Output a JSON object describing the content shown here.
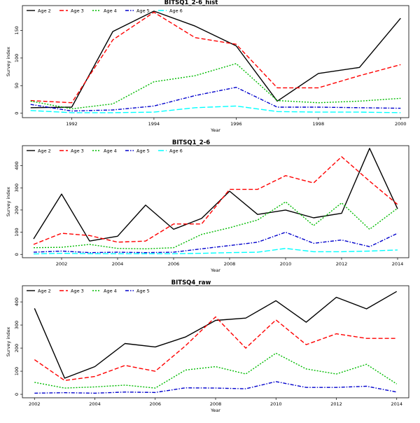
{
  "chart_data": [
    {
      "type": "line",
      "title": "BITSQ1_2-6_hist",
      "xlabel": "Year",
      "ylabel": "Survey index",
      "xlim": [
        1990.8,
        2000.2
      ],
      "ylim": [
        -8,
        195
      ],
      "xticks": [
        1992,
        1994,
        1996,
        1998,
        2000
      ],
      "yticks": [
        0,
        50,
        100,
        150
      ],
      "legend_position": "top-left",
      "x": [
        1991,
        1992,
        1993,
        1994,
        1995,
        1996,
        1997,
        1998,
        1999,
        2000
      ],
      "series": [
        {
          "name": "Age 2",
          "color": "#000000",
          "dash": "solid",
          "values": [
            10,
            11,
            148,
            185,
            158,
            122,
            22,
            72,
            83,
            172
          ]
        },
        {
          "name": "Age 3",
          "color": "#ff0000",
          "dash": "dash",
          "values": [
            23,
            19,
            133,
            183,
            137,
            125,
            46,
            46,
            68,
            88
          ]
        },
        {
          "name": "Age 4",
          "color": "#00bb00",
          "dash": "dot",
          "values": [
            22,
            8,
            17,
            57,
            68,
            90,
            23,
            19,
            22,
            27
          ]
        },
        {
          "name": "Age 5",
          "color": "#0000cc",
          "dash": "dashdot",
          "values": [
            16,
            4,
            6,
            13,
            32,
            47,
            11,
            11,
            10,
            9
          ]
        },
        {
          "name": "Age 6",
          "color": "#00ffff",
          "dash": "longdash",
          "values": [
            5,
            1,
            1,
            2,
            10,
            13,
            3,
            2,
            2,
            1
          ]
        }
      ]
    },
    {
      "type": "line",
      "title": "BITSQ1_2-6",
      "xlabel": "Year",
      "ylabel": "Survey index",
      "xlim": [
        2000.6,
        2014.4
      ],
      "ylim": [
        -15,
        490
      ],
      "xticks": [
        2002,
        2004,
        2006,
        2008,
        2010,
        2012,
        2014
      ],
      "yticks": [
        0,
        100,
        200,
        300,
        400
      ],
      "legend_position": "top-left",
      "x": [
        2001,
        2002,
        2003,
        2004,
        2005,
        2006,
        2007,
        2008,
        2009,
        2010,
        2011,
        2012,
        2013,
        2014
      ],
      "series": [
        {
          "name": "Age 2",
          "color": "#000000",
          "dash": "solid",
          "values": [
            70,
            272,
            60,
            82,
            222,
            113,
            162,
            285,
            180,
            200,
            165,
            185,
            478,
            205
          ]
        },
        {
          "name": "Age 3",
          "color": "#ff0000",
          "dash": "dash",
          "values": [
            45,
            95,
            85,
            55,
            60,
            137,
            137,
            293,
            293,
            355,
            322,
            440,
            330,
            225
          ]
        },
        {
          "name": "Age 4",
          "color": "#00bb00",
          "dash": "dot",
          "values": [
            30,
            32,
            45,
            27,
            25,
            30,
            90,
            120,
            155,
            237,
            130,
            232,
            113,
            208
          ]
        },
        {
          "name": "Age 5",
          "color": "#0000cc",
          "dash": "dashdot",
          "values": [
            10,
            15,
            8,
            10,
            8,
            10,
            25,
            40,
            55,
            100,
            50,
            65,
            35,
            95
          ]
        },
        {
          "name": "Age 6",
          "color": "#00ffff",
          "dash": "longdash",
          "values": [
            2,
            5,
            3,
            3,
            3,
            3,
            5,
            8,
            10,
            27,
            12,
            12,
            15,
            20
          ]
        }
      ]
    },
    {
      "type": "line",
      "title": "BITSQ4_raw",
      "xlabel": "Year",
      "ylabel": "Survey index",
      "xlim": [
        2001.6,
        2014.4
      ],
      "ylim": [
        -15,
        470
      ],
      "xticks": [
        2002,
        2004,
        2006,
        2008,
        2010,
        2012,
        2014
      ],
      "yticks": [
        0,
        100,
        200,
        300,
        400
      ],
      "legend_position": "top-left",
      "x": [
        2002,
        2003,
        2004,
        2005,
        2006,
        2007,
        2008,
        2009,
        2010,
        2011,
        2012,
        2013,
        2014
      ],
      "series": [
        {
          "name": "Age 2",
          "color": "#000000",
          "dash": "solid",
          "values": [
            372,
            70,
            120,
            220,
            205,
            248,
            320,
            330,
            405,
            312,
            420,
            370,
            445
          ]
        },
        {
          "name": "Age 3",
          "color": "#ff0000",
          "dash": "dash",
          "values": [
            150,
            60,
            77,
            125,
            100,
            210,
            335,
            200,
            322,
            215,
            262,
            242,
            242
          ]
        },
        {
          "name": "Age 4",
          "color": "#00bb00",
          "dash": "dot",
          "values": [
            52,
            27,
            32,
            40,
            27,
            105,
            120,
            88,
            178,
            110,
            88,
            130,
            45
          ]
        },
        {
          "name": "Age 5",
          "color": "#0000cc",
          "dash": "dashdot",
          "values": [
            5,
            7,
            5,
            10,
            8,
            28,
            27,
            24,
            55,
            30,
            30,
            35,
            10
          ]
        }
      ]
    }
  ]
}
